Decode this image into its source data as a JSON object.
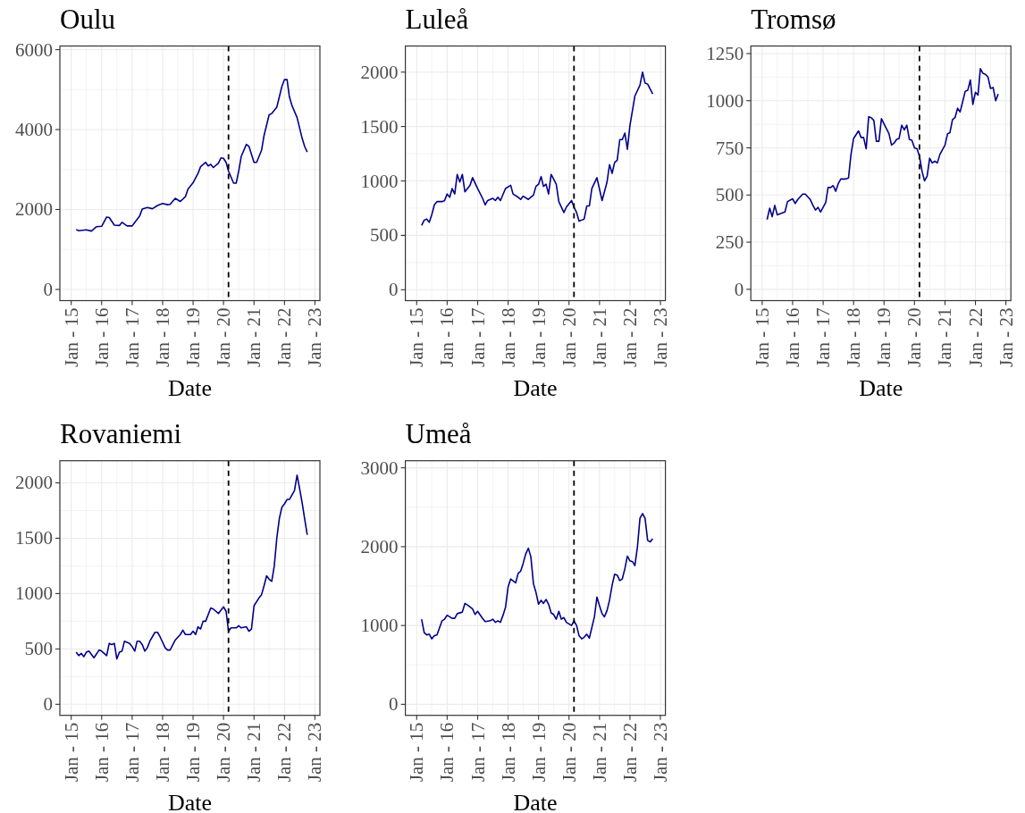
{
  "chart_data": [
    {
      "type": "line",
      "title": "Oulu",
      "xlabel": "Date",
      "color": "#00008b",
      "x": [
        "2015-03",
        "2015-04",
        "2015-07",
        "2015-09",
        "2015-11",
        "2016-01",
        "2016-03",
        "2016-04",
        "2016-06",
        "2016-08",
        "2016-09",
        "2016-11",
        "2017-01",
        "2017-04",
        "2017-05",
        "2017-07",
        "2017-09",
        "2017-11",
        "2018-01",
        "2018-03",
        "2018-04",
        "2018-06",
        "2018-08",
        "2018-10",
        "2018-11",
        "2019-01",
        "2019-03",
        "2019-04",
        "2019-06",
        "2019-07",
        "2019-08",
        "2019-09",
        "2019-11",
        "2019-12",
        "2020-01",
        "2020-02",
        "2020-03",
        "2020-05",
        "2020-06",
        "2020-07",
        "2020-08",
        "2020-10",
        "2020-11",
        "2021-01",
        "2021-02",
        "2021-04",
        "2021-05",
        "2021-07",
        "2021-08",
        "2021-10",
        "2021-12",
        "2022-01",
        "2022-02",
        "2022-03",
        "2022-04",
        "2022-06",
        "2022-08",
        "2022-09",
        "2022-10"
      ],
      "values": [
        1500,
        1470,
        1490,
        1460,
        1570,
        1580,
        1810,
        1800,
        1610,
        1600,
        1680,
        1590,
        1590,
        1840,
        2010,
        2050,
        2020,
        2100,
        2150,
        2120,
        2130,
        2280,
        2200,
        2320,
        2510,
        2670,
        2900,
        3070,
        3180,
        3090,
        3130,
        3050,
        3160,
        3290,
        3280,
        3180,
        2960,
        2660,
        2660,
        2960,
        3330,
        3630,
        3580,
        3180,
        3180,
        3480,
        3850,
        4370,
        4400,
        4560,
        5080,
        5250,
        5250,
        4820,
        4600,
        4300,
        3780,
        3570,
        3440
      ],
      "xlim": [
        "2014-08-18",
        "2023-03-02"
      ],
      "xticks": [
        {
          "value": "2015-01",
          "label": "Jan - 15"
        },
        {
          "value": "2015-07",
          "label": null
        },
        {
          "value": "2016-01",
          "label": "Jan - 16"
        },
        {
          "value": "2016-07",
          "label": null
        },
        {
          "value": "2017-01",
          "label": "Jan - 17"
        },
        {
          "value": "2017-07",
          "label": null
        },
        {
          "value": "2018-01",
          "label": "Jan - 18"
        },
        {
          "value": "2018-07",
          "label": null
        },
        {
          "value": "2019-01",
          "label": "Jan - 19"
        },
        {
          "value": "2019-07",
          "label": null
        },
        {
          "value": "2020-01",
          "label": "Jan - 20"
        },
        {
          "value": "2020-07",
          "label": null
        },
        {
          "value": "2021-01",
          "label": "Jan - 21"
        },
        {
          "value": "2021-07",
          "label": null
        },
        {
          "value": "2022-01",
          "label": "Jan - 22"
        },
        {
          "value": "2022-07",
          "label": null
        },
        {
          "value": "2023-01",
          "label": "Jan - 23"
        }
      ],
      "ylim": [
        -280,
        6090
      ],
      "yticks": [
        0,
        {
          "value": 1000,
          "label": null
        },
        2000,
        {
          "value": 3000,
          "label": null
        },
        4000,
        {
          "value": 5000,
          "label": null
        },
        6000
      ],
      "grid": true,
      "ref_lines": [
        {
          "axis": "x",
          "value": "2020-03",
          "color": "#000000",
          "line_style": "dashed"
        }
      ]
    },
    {
      "type": "line",
      "title": "Luleå",
      "xlabel": "Date",
      "color": "#00008b",
      "x": [
        "2015-03",
        "2015-04",
        "2015-05",
        "2015-06",
        "2015-07",
        "2015-08",
        "2015-09",
        "2015-11",
        "2015-12",
        "2016-01",
        "2016-02",
        "2016-03",
        "2016-04",
        "2016-05",
        "2016-06",
        "2016-07",
        "2016-08",
        "2016-10",
        "2016-11",
        "2017-01",
        "2017-03",
        "2017-04",
        "2017-05",
        "2017-07",
        "2017-08",
        "2017-09",
        "2017-10",
        "2017-12",
        "2018-02",
        "2018-03",
        "2018-05",
        "2018-06",
        "2018-07",
        "2018-09",
        "2018-11",
        "2018-12",
        "2019-01",
        "2019-02",
        "2019-03",
        "2019-04",
        "2019-05",
        "2019-06",
        "2019-08",
        "2019-09",
        "2019-11",
        "2019-12",
        "2020-02",
        "2020-03",
        "2020-04",
        "2020-05",
        "2020-06",
        "2020-07",
        "2020-08",
        "2020-09",
        "2020-10",
        "2020-12",
        "2021-02",
        "2021-04",
        "2021-05",
        "2021-06",
        "2021-07",
        "2021-08",
        "2021-09",
        "2021-10",
        "2021-11",
        "2021-12",
        "2022-01",
        "2022-03",
        "2022-05",
        "2022-06",
        "2022-07",
        "2022-08",
        "2022-10"
      ],
      "values": [
        590,
        640,
        650,
        620,
        690,
        780,
        810,
        810,
        820,
        880,
        850,
        930,
        880,
        1060,
        990,
        1060,
        900,
        960,
        1030,
        930,
        840,
        780,
        820,
        840,
        820,
        850,
        820,
        930,
        960,
        880,
        850,
        830,
        860,
        830,
        870,
        950,
        970,
        1040,
        950,
        970,
        880,
        1060,
        970,
        810,
        710,
        760,
        820,
        760,
        710,
        630,
        640,
        650,
        770,
        770,
        930,
        1030,
        820,
        990,
        1150,
        1070,
        1170,
        1190,
        1380,
        1380,
        1440,
        1290,
        1510,
        1780,
        1880,
        2000,
        1900,
        1890,
        1800
      ],
      "xlim": [
        "2014-08-18",
        "2023-03-02"
      ],
      "xticks": [
        {
          "value": "2015-01",
          "label": "Jan - 15"
        },
        {
          "value": "2015-07",
          "label": null
        },
        {
          "value": "2016-01",
          "label": "Jan - 16"
        },
        {
          "value": "2016-07",
          "label": null
        },
        {
          "value": "2017-01",
          "label": "Jan - 17"
        },
        {
          "value": "2017-07",
          "label": null
        },
        {
          "value": "2018-01",
          "label": "Jan - 18"
        },
        {
          "value": "2018-07",
          "label": null
        },
        {
          "value": "2019-01",
          "label": "Jan - 19"
        },
        {
          "value": "2019-07",
          "label": null
        },
        {
          "value": "2020-01",
          "label": "Jan - 20"
        },
        {
          "value": "2020-07",
          "label": null
        },
        {
          "value": "2021-01",
          "label": "Jan - 21"
        },
        {
          "value": "2021-07",
          "label": null
        },
        {
          "value": "2022-01",
          "label": "Jan - 22"
        },
        {
          "value": "2022-07",
          "label": null
        },
        {
          "value": "2023-01",
          "label": "Jan - 23"
        }
      ],
      "ylim": [
        -100,
        2240
      ],
      "yticks": [
        0,
        {
          "value": 250,
          "label": null
        },
        500,
        {
          "value": 750,
          "label": null
        },
        1000,
        {
          "value": 1250,
          "label": null
        },
        1500,
        {
          "value": 1750,
          "label": null
        },
        2000
      ],
      "grid": true,
      "ref_lines": [
        {
          "axis": "x",
          "value": "2020-03",
          "color": "#000000",
          "line_style": "dashed"
        }
      ]
    },
    {
      "type": "line",
      "title": "Tromsø",
      "xlabel": "Date",
      "color": "#00008b",
      "x": [
        "2015-03",
        "2015-04",
        "2015-05",
        "2015-06",
        "2015-07",
        "2015-09",
        "2015-10",
        "2015-11",
        "2016-01",
        "2016-02",
        "2016-03",
        "2016-05",
        "2016-06",
        "2016-08",
        "2016-09",
        "2016-10",
        "2016-11",
        "2016-12",
        "2017-02",
        "2017-03",
        "2017-04",
        "2017-05",
        "2017-06",
        "2017-07",
        "2017-08",
        "2017-10",
        "2017-11",
        "2017-12",
        "2018-01",
        "2018-03",
        "2018-04",
        "2018-05",
        "2018-06",
        "2018-07",
        "2018-08",
        "2018-09",
        "2018-10",
        "2018-11",
        "2018-12",
        "2019-02",
        "2019-03",
        "2019-04",
        "2019-05",
        "2019-06",
        "2019-07",
        "2019-08",
        "2019-09",
        "2019-10",
        "2019-11",
        "2019-12",
        "2020-01",
        "2020-02",
        "2020-03",
        "2020-04",
        "2020-05",
        "2020-06",
        "2020-07",
        "2020-08",
        "2020-09",
        "2020-10",
        "2020-11",
        "2021-01",
        "2021-02",
        "2021-03",
        "2021-04",
        "2021-05",
        "2021-06",
        "2021-07",
        "2021-08",
        "2021-09",
        "2021-10",
        "2021-11",
        "2021-12",
        "2022-01",
        "2022-02",
        "2022-03",
        "2022-04",
        "2022-05",
        "2022-06",
        "2022-07",
        "2022-08",
        "2022-09",
        "2022-10"
      ],
      "values": [
        370,
        430,
        385,
        445,
        395,
        405,
        410,
        465,
        480,
        455,
        475,
        505,
        505,
        475,
        445,
        420,
        435,
        410,
        460,
        540,
        540,
        550,
        520,
        560,
        585,
        585,
        590,
        715,
        800,
        840,
        805,
        805,
        745,
        915,
        910,
        895,
        785,
        785,
        905,
        850,
        825,
        765,
        775,
        795,
        800,
        870,
        845,
        870,
        795,
        790,
        750,
        745,
        705,
        625,
        575,
        600,
        695,
        670,
        680,
        670,
        715,
        765,
        825,
        830,
        900,
        910,
        960,
        940,
        995,
        1050,
        1055,
        1110,
        980,
        1045,
        1030,
        1170,
        1145,
        1140,
        1125,
        1065,
        1070,
        1000,
        1035
      ],
      "xlim": [
        "2014-08-18",
        "2023-03-02"
      ],
      "xticks": [
        {
          "value": "2015-01",
          "label": "Jan - 15"
        },
        {
          "value": "2015-07",
          "label": null
        },
        {
          "value": "2016-01",
          "label": "Jan - 16"
        },
        {
          "value": "2016-07",
          "label": null
        },
        {
          "value": "2017-01",
          "label": "Jan - 17"
        },
        {
          "value": "2017-07",
          "label": null
        },
        {
          "value": "2018-01",
          "label": "Jan - 18"
        },
        {
          "value": "2018-07",
          "label": null
        },
        {
          "value": "2019-01",
          "label": "Jan - 19"
        },
        {
          "value": "2019-07",
          "label": null
        },
        {
          "value": "2020-01",
          "label": "Jan - 20"
        },
        {
          "value": "2020-07",
          "label": null
        },
        {
          "value": "2021-01",
          "label": "Jan - 21"
        },
        {
          "value": "2021-07",
          "label": null
        },
        {
          "value": "2022-01",
          "label": "Jan - 22"
        },
        {
          "value": "2022-07",
          "label": null
        },
        {
          "value": "2023-01",
          "label": "Jan - 23"
        }
      ],
      "ylim": [
        -60,
        1290
      ],
      "yticks": [
        0,
        {
          "value": 125,
          "label": null
        },
        250,
        {
          "value": 375,
          "label": null
        },
        500,
        {
          "value": 625,
          "label": null
        },
        750,
        {
          "value": 875,
          "label": null
        },
        1000,
        {
          "value": 1125,
          "label": null
        },
        1250
      ],
      "grid": true,
      "ref_lines": [
        {
          "axis": "x",
          "value": "2020-03",
          "color": "#000000",
          "line_style": "dashed"
        }
      ]
    },
    {
      "type": "line",
      "title": "Rovaniemi",
      "xlabel": "Date",
      "color": "#00008b",
      "x": [
        "2015-03",
        "2015-04",
        "2015-05",
        "2015-06",
        "2015-07",
        "2015-08",
        "2015-10",
        "2015-12",
        "2016-01",
        "2016-03",
        "2016-04",
        "2016-05",
        "2016-06",
        "2016-07",
        "2016-08",
        "2016-09",
        "2016-10",
        "2016-12",
        "2017-01",
        "2017-02",
        "2017-03",
        "2017-04",
        "2017-05",
        "2017-06",
        "2017-07",
        "2017-08",
        "2017-10",
        "2017-11",
        "2017-12",
        "2018-02",
        "2018-03",
        "2018-04",
        "2018-06",
        "2018-08",
        "2018-09",
        "2018-10",
        "2018-12",
        "2019-01",
        "2019-02",
        "2019-03",
        "2019-04",
        "2019-05",
        "2019-06",
        "2019-08",
        "2019-09",
        "2019-11",
        "2020-01",
        "2020-02",
        "2020-03",
        "2020-04",
        "2020-06",
        "2020-07",
        "2020-08",
        "2020-10",
        "2020-11",
        "2020-12",
        "2021-01",
        "2021-03",
        "2021-04",
        "2021-05",
        "2021-06",
        "2021-07",
        "2021-08",
        "2021-09",
        "2021-10",
        "2021-11",
        "2021-12",
        "2022-01",
        "2022-02",
        "2022-03",
        "2022-05",
        "2022-06",
        "2022-07",
        "2022-08",
        "2022-09",
        "2022-10"
      ],
      "values": [
        470,
        440,
        460,
        430,
        470,
        480,
        420,
        490,
        480,
        440,
        550,
        540,
        550,
        410,
        470,
        480,
        570,
        550,
        520,
        480,
        570,
        570,
        540,
        480,
        510,
        570,
        650,
        650,
        610,
        510,
        490,
        490,
        580,
        630,
        670,
        630,
        630,
        660,
        630,
        700,
        680,
        750,
        750,
        870,
        860,
        820,
        880,
        840,
        660,
        690,
        690,
        710,
        690,
        700,
        660,
        680,
        890,
        960,
        990,
        1070,
        1160,
        1130,
        1110,
        1250,
        1500,
        1680,
        1780,
        1810,
        1850,
        1850,
        1930,
        2070,
        1950,
        1820,
        1670,
        1530
      ],
      "xlim": [
        "2014-08-18",
        "2023-03-02"
      ],
      "xticks": [
        {
          "value": "2015-01",
          "label": "Jan - 15"
        },
        {
          "value": "2015-07",
          "label": null
        },
        {
          "value": "2016-01",
          "label": "Jan - 16"
        },
        {
          "value": "2016-07",
          "label": null
        },
        {
          "value": "2017-01",
          "label": "Jan - 17"
        },
        {
          "value": "2017-07",
          "label": null
        },
        {
          "value": "2018-01",
          "label": "Jan - 18"
        },
        {
          "value": "2018-07",
          "label": null
        },
        {
          "value": "2019-01",
          "label": "Jan - 19"
        },
        {
          "value": "2019-07",
          "label": null
        },
        {
          "value": "2020-01",
          "label": "Jan - 20"
        },
        {
          "value": "2020-07",
          "label": null
        },
        {
          "value": "2021-01",
          "label": "Jan - 21"
        },
        {
          "value": "2021-07",
          "label": null
        },
        {
          "value": "2022-01",
          "label": "Jan - 22"
        },
        {
          "value": "2022-07",
          "label": null
        },
        {
          "value": "2023-01",
          "label": "Jan - 23"
        }
      ],
      "ylim": [
        -100,
        2200
      ],
      "yticks": [
        0,
        {
          "value": 250,
          "label": null
        },
        500,
        {
          "value": 750,
          "label": null
        },
        1000,
        {
          "value": 1250,
          "label": null
        },
        1500,
        {
          "value": 1750,
          "label": null
        },
        2000
      ],
      "grid": true,
      "ref_lines": [
        {
          "axis": "x",
          "value": "2020-03",
          "color": "#000000",
          "line_style": "dashed"
        }
      ]
    },
    {
      "type": "line",
      "title": "Umeå",
      "xlabel": "Date",
      "color": "#00008b",
      "x": [
        "2015-03",
        "2015-04",
        "2015-05",
        "2015-06",
        "2015-07",
        "2015-08",
        "2015-09",
        "2015-11",
        "2015-12",
        "2016-01",
        "2016-03",
        "2016-04",
        "2016-05",
        "2016-07",
        "2016-08",
        "2016-09",
        "2016-11",
        "2016-12",
        "2017-01",
        "2017-03",
        "2017-04",
        "2017-06",
        "2017-07",
        "2017-08",
        "2017-09",
        "2017-10",
        "2017-11",
        "2017-12",
        "2018-01",
        "2018-02",
        "2018-04",
        "2018-05",
        "2018-06",
        "2018-07",
        "2018-08",
        "2018-09",
        "2018-10",
        "2018-11",
        "2018-12",
        "2019-01",
        "2019-02",
        "2019-03",
        "2019-04",
        "2019-05",
        "2019-06",
        "2019-07",
        "2019-08",
        "2019-09",
        "2019-10",
        "2019-11",
        "2019-12",
        "2020-01",
        "2020-02",
        "2020-03",
        "2020-04",
        "2020-05",
        "2020-06",
        "2020-07",
        "2020-08",
        "2020-09",
        "2020-11",
        "2020-12",
        "2021-01",
        "2021-02",
        "2021-03",
        "2021-04",
        "2021-05",
        "2021-06",
        "2021-07",
        "2021-08",
        "2021-09",
        "2021-10",
        "2021-11",
        "2021-12",
        "2022-01",
        "2022-02",
        "2022-03",
        "2022-04",
        "2022-05",
        "2022-06",
        "2022-07",
        "2022-08",
        "2022-09",
        "2022-10"
      ],
      "values": [
        1080,
        910,
        880,
        890,
        830,
        870,
        880,
        1060,
        1080,
        1130,
        1090,
        1090,
        1150,
        1170,
        1280,
        1260,
        1210,
        1140,
        1180,
        1090,
        1050,
        1060,
        1080,
        1040,
        1060,
        1040,
        1130,
        1230,
        1490,
        1590,
        1540,
        1660,
        1690,
        1790,
        1910,
        1980,
        1870,
        1530,
        1420,
        1270,
        1320,
        1280,
        1330,
        1270,
        1160,
        1140,
        1080,
        1180,
        1080,
        1100,
        1040,
        1020,
        1000,
        1060,
        1000,
        870,
        830,
        850,
        890,
        840,
        1110,
        1360,
        1250,
        1150,
        1110,
        1190,
        1320,
        1510,
        1650,
        1640,
        1570,
        1590,
        1720,
        1880,
        1820,
        1810,
        1760,
        2000,
        2360,
        2420,
        2360,
        2080,
        2060,
        2100
      ],
      "xlim": [
        "2014-08-18",
        "2023-03-02"
      ],
      "xticks": [
        {
          "value": "2015-01",
          "label": "Jan - 15"
        },
        {
          "value": "2015-07",
          "label": null
        },
        {
          "value": "2016-01",
          "label": "Jan - 16"
        },
        {
          "value": "2016-07",
          "label": null
        },
        {
          "value": "2017-01",
          "label": "Jan - 17"
        },
        {
          "value": "2017-07",
          "label": null
        },
        {
          "value": "2018-01",
          "label": "Jan - 18"
        },
        {
          "value": "2018-07",
          "label": null
        },
        {
          "value": "2019-01",
          "label": "Jan - 19"
        },
        {
          "value": "2019-07",
          "label": null
        },
        {
          "value": "2020-01",
          "label": "Jan - 20"
        },
        {
          "value": "2020-07",
          "label": null
        },
        {
          "value": "2021-01",
          "label": "Jan - 21"
        },
        {
          "value": "2021-07",
          "label": null
        },
        {
          "value": "2022-01",
          "label": "Jan - 22"
        },
        {
          "value": "2022-07",
          "label": null
        },
        {
          "value": "2023-01",
          "label": "Jan - 23"
        }
      ],
      "ylim": [
        -140,
        3090
      ],
      "yticks": [
        0,
        {
          "value": 500,
          "label": null
        },
        1000,
        {
          "value": 1500,
          "label": null
        },
        2000,
        {
          "value": 2500,
          "label": null
        },
        3000
      ],
      "grid": true,
      "ref_lines": [
        {
          "axis": "x",
          "value": "2020-03",
          "color": "#000000",
          "line_style": "dashed"
        }
      ]
    }
  ]
}
